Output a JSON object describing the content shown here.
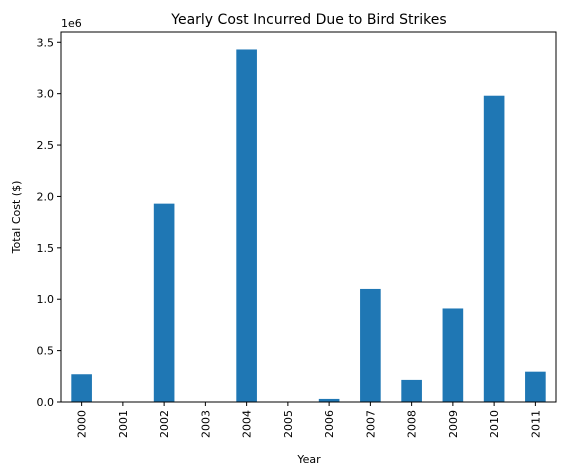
{
  "chart_data": {
    "type": "bar",
    "title": "Yearly Cost Incurred Due to Bird Strikes",
    "xlabel": "Year",
    "ylabel": "Total Cost ($)",
    "y_scale_label": "1e6",
    "categories": [
      "2000",
      "2001",
      "2002",
      "2003",
      "2004",
      "2005",
      "2006",
      "2007",
      "2008",
      "2009",
      "2010",
      "2011"
    ],
    "values": [
      270000,
      0,
      1930000,
      0,
      3430000,
      0,
      30000,
      1100000,
      215000,
      910000,
      2980000,
      295000
    ],
    "ylim": [
      0,
      3600000
    ],
    "yticks": [
      0,
      500000,
      1000000,
      1500000,
      2000000,
      2500000,
      3000000,
      3500000
    ],
    "ytick_labels": [
      "0.0",
      "0.5",
      "1.0",
      "1.5",
      "2.0",
      "2.5",
      "3.0",
      "3.5"
    ],
    "grid": false,
    "bar_color": "#1f77b4"
  }
}
